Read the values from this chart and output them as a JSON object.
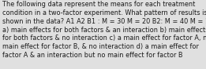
{
  "lines": [
    "The following data represent the means for each treatment",
    "condition in a two-factor experiment. What pattern of results is",
    "shown in the data? A1 A2 B1 : M = 30 M = 20 B2: M = 40 M = 10",
    "a) main effects for both factors & an interaction b) main effects",
    "for both factors & no interaction c) a main effect for factor A, no",
    "main effect for factor B, & no interaction d) a main effect for",
    "factor A & an interaction but no main effect for factor B"
  ],
  "background_color": "#e0e0e0",
  "text_color": "#1a1a1a",
  "fontsize": 5.85,
  "fig_width": 2.61,
  "fig_height": 0.88,
  "dpi": 100
}
